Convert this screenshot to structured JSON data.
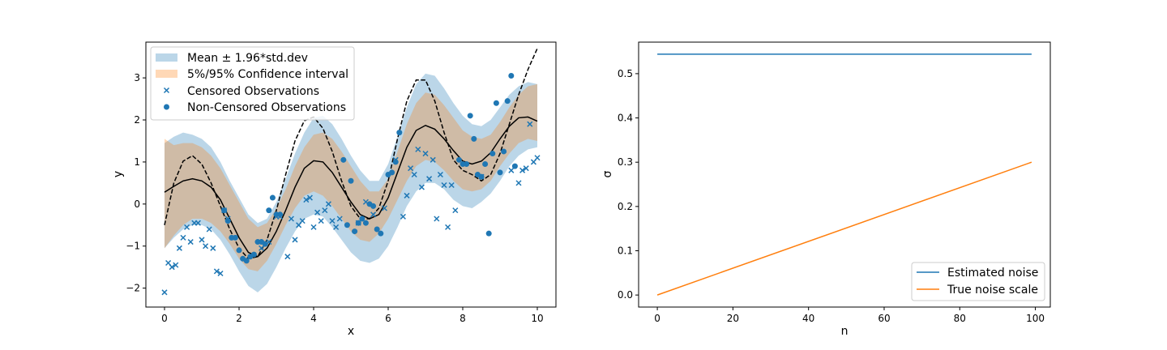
{
  "chart_data": [
    {
      "type": "line",
      "xlabel": "x",
      "ylabel": "y",
      "xlim": [
        -0.5,
        10.5
      ],
      "ylim": [
        -2.45,
        3.85
      ],
      "xticks": [
        0,
        2,
        4,
        6,
        8,
        10
      ],
      "yticks": [
        -2,
        -1,
        0,
        1,
        2,
        3
      ],
      "legend_location": "upper left",
      "colors": {
        "band_blue": "#1f77b4",
        "band_orange": "#ff7f0e",
        "scatter": "#1f77b4",
        "mean": "#000000"
      },
      "legend": [
        "Mean ± 1.96*std.dev",
        "5%/95% Confidence interval",
        "Censored Observations",
        "Non-Censored Observations"
      ],
      "band_mean_std": {
        "x": [
          0,
          0.25,
          0.5,
          0.75,
          1,
          1.25,
          1.5,
          1.75,
          2,
          2.25,
          2.5,
          2.75,
          3,
          3.25,
          3.5,
          3.75,
          4,
          4.25,
          4.5,
          4.75,
          5,
          5.25,
          5.5,
          5.75,
          6,
          6.25,
          6.5,
          6.75,
          7,
          7.25,
          7.5,
          7.75,
          8,
          8.25,
          8.5,
          8.75,
          9,
          9.25,
          9.5,
          9.75,
          10
        ],
        "lower": [
          -1.05,
          -0.8,
          -0.6,
          -0.5,
          -0.5,
          -0.6,
          -0.85,
          -1.2,
          -1.6,
          -1.95,
          -2.1,
          -1.9,
          -1.5,
          -1.05,
          -0.65,
          -0.35,
          -0.25,
          -0.3,
          -0.55,
          -0.85,
          -1.15,
          -1.35,
          -1.4,
          -1.3,
          -1.0,
          -0.55,
          -0.05,
          0.3,
          0.5,
          0.5,
          0.35,
          0.1,
          -0.05,
          -0.1,
          0.05,
          0.25,
          0.55,
          0.9,
          1.15,
          1.3,
          1.35
        ],
        "upper": [
          1.45,
          1.6,
          1.7,
          1.65,
          1.55,
          1.35,
          1.0,
          0.55,
          0.15,
          -0.25,
          -0.45,
          -0.35,
          0.05,
          0.6,
          1.2,
          1.7,
          2.05,
          2.1,
          1.9,
          1.55,
          1.15,
          0.8,
          0.55,
          0.55,
          0.95,
          1.6,
          2.3,
          2.85,
          3.1,
          3.05,
          2.75,
          2.4,
          2.1,
          1.9,
          1.85,
          2.0,
          2.3,
          2.6,
          2.8,
          2.9,
          2.85
        ]
      },
      "band_confidence": {
        "x": [
          0,
          0.25,
          0.5,
          0.75,
          1,
          1.25,
          1.5,
          1.75,
          2,
          2.25,
          2.5,
          2.75,
          3,
          3.25,
          3.5,
          3.75,
          4,
          4.25,
          4.5,
          4.75,
          5,
          5.25,
          5.5,
          5.75,
          6,
          6.25,
          6.5,
          6.75,
          7,
          7.25,
          7.5,
          7.75,
          8,
          8.25,
          8.5,
          8.75,
          9,
          9.25,
          9.5,
          9.75,
          10
        ],
        "lower": [
          -1.05,
          -0.75,
          -0.5,
          -0.35,
          -0.35,
          -0.45,
          -0.65,
          -0.95,
          -1.3,
          -1.55,
          -1.6,
          -1.35,
          -0.95,
          -0.5,
          -0.1,
          0.2,
          0.3,
          0.2,
          -0.05,
          -0.35,
          -0.65,
          -0.85,
          -0.9,
          -0.7,
          -0.35,
          0.1,
          0.55,
          0.9,
          1.05,
          1.0,
          0.8,
          0.55,
          0.35,
          0.3,
          0.35,
          0.55,
          0.9,
          1.2,
          1.45,
          1.55,
          1.5
        ],
        "upper": [
          1.55,
          1.4,
          1.45,
          1.45,
          1.35,
          1.15,
          0.85,
          0.45,
          0.05,
          -0.35,
          -0.55,
          -0.45,
          -0.1,
          0.35,
          0.9,
          1.35,
          1.65,
          1.7,
          1.55,
          1.25,
          0.9,
          0.55,
          0.3,
          0.3,
          0.6,
          1.25,
          1.9,
          2.4,
          2.65,
          2.6,
          2.35,
          2.05,
          1.75,
          1.6,
          1.55,
          1.65,
          1.95,
          2.3,
          2.6,
          2.8,
          2.85
        ]
      },
      "mean_line": {
        "x": [
          0,
          0.25,
          0.5,
          0.75,
          1,
          1.25,
          1.5,
          1.75,
          2,
          2.25,
          2.5,
          2.75,
          3,
          3.25,
          3.5,
          3.75,
          4,
          4.25,
          4.5,
          4.75,
          5,
          5.25,
          5.5,
          5.75,
          6,
          6.25,
          6.5,
          6.75,
          7,
          7.25,
          7.5,
          7.75,
          8,
          8.25,
          8.5,
          8.75,
          9,
          9.25,
          9.5,
          9.75,
          10
        ],
        "y": [
          0.28,
          0.42,
          0.55,
          0.6,
          0.55,
          0.4,
          0.1,
          -0.35,
          -0.8,
          -1.15,
          -1.25,
          -1.05,
          -0.65,
          -0.15,
          0.4,
          0.85,
          1.03,
          1.0,
          0.75,
          0.4,
          0.05,
          -0.25,
          -0.35,
          -0.25,
          0.15,
          0.75,
          1.35,
          1.75,
          1.87,
          1.78,
          1.55,
          1.27,
          1.02,
          0.95,
          1.02,
          1.22,
          1.55,
          1.85,
          2.05,
          2.07,
          1.97
        ]
      },
      "true_function": {
        "x": [
          0,
          0.25,
          0.5,
          0.75,
          1,
          1.25,
          1.5,
          1.75,
          2,
          2.25,
          2.5,
          2.75,
          3,
          3.25,
          3.5,
          3.75,
          4,
          4.25,
          4.5,
          4.75,
          5,
          5.25,
          5.5,
          5.75,
          6,
          6.25,
          6.5,
          6.75,
          7,
          7.25,
          7.5,
          7.75,
          8,
          8.25,
          8.5,
          8.75,
          9,
          9.25,
          9.5,
          9.75,
          10
        ],
        "y": [
          -0.5,
          0.5,
          1.02,
          1.15,
          0.95,
          0.5,
          -0.05,
          -0.6,
          -1.05,
          -1.3,
          -1.25,
          -0.85,
          -0.15,
          0.7,
          1.5,
          1.98,
          2.07,
          1.8,
          1.25,
          0.55,
          -0.05,
          -0.35,
          -0.35,
          -0.1,
          0.55,
          1.55,
          2.45,
          2.95,
          2.95,
          2.45,
          1.7,
          1.05,
          0.8,
          0.7,
          0.55,
          0.7,
          1.2,
          1.9,
          2.6,
          3.2,
          3.7
        ]
      },
      "censored_observations": [
        [
          0.0,
          -2.1
        ],
        [
          0.1,
          -1.4
        ],
        [
          0.2,
          -1.5
        ],
        [
          0.3,
          -1.45
        ],
        [
          0.4,
          -1.05
        ],
        [
          0.5,
          -0.8
        ],
        [
          0.6,
          -0.55
        ],
        [
          0.7,
          -0.9
        ],
        [
          0.8,
          -0.45
        ],
        [
          0.9,
          -0.45
        ],
        [
          1.0,
          -0.85
        ],
        [
          1.1,
          -1.0
        ],
        [
          1.2,
          -0.6
        ],
        [
          1.3,
          -1.05
        ],
        [
          1.4,
          -1.6
        ],
        [
          1.5,
          -1.65
        ],
        [
          1.6,
          -0.15
        ],
        [
          1.7,
          -0.35
        ],
        [
          2.6,
          -1.05
        ],
        [
          2.8,
          -0.9
        ],
        [
          3.0,
          -0.3
        ],
        [
          3.1,
          -0.3
        ],
        [
          3.3,
          -1.25
        ],
        [
          3.4,
          -0.35
        ],
        [
          3.5,
          -0.85
        ],
        [
          3.6,
          -0.5
        ],
        [
          3.7,
          -0.4
        ],
        [
          3.8,
          0.1
        ],
        [
          3.9,
          0.15
        ],
        [
          4.0,
          -0.55
        ],
        [
          4.1,
          -0.2
        ],
        [
          4.2,
          -0.4
        ],
        [
          4.3,
          -0.15
        ],
        [
          4.4,
          0.0
        ],
        [
          4.5,
          -0.4
        ],
        [
          4.6,
          -0.55
        ],
        [
          4.7,
          -0.35
        ],
        [
          5.2,
          -0.45
        ],
        [
          5.4,
          0.05
        ],
        [
          5.6,
          -0.25
        ],
        [
          5.9,
          -0.1
        ],
        [
          6.2,
          1.05
        ],
        [
          6.4,
          -0.3
        ],
        [
          6.5,
          0.2
        ],
        [
          6.6,
          0.85
        ],
        [
          6.7,
          0.7
        ],
        [
          6.8,
          1.3
        ],
        [
          6.9,
          0.4
        ],
        [
          7.0,
          1.2
        ],
        [
          7.1,
          0.6
        ],
        [
          7.2,
          1.05
        ],
        [
          7.3,
          -0.35
        ],
        [
          7.4,
          0.7
        ],
        [
          7.5,
          0.45
        ],
        [
          7.6,
          -0.55
        ],
        [
          7.7,
          0.45
        ],
        [
          7.8,
          -0.15
        ],
        [
          8.5,
          0.65
        ],
        [
          9.3,
          0.8
        ],
        [
          9.5,
          0.5
        ],
        [
          9.6,
          0.8
        ],
        [
          9.7,
          0.85
        ],
        [
          9.8,
          1.9
        ],
        [
          9.9,
          1.0
        ],
        [
          10.0,
          1.1
        ]
      ],
      "non_censored_observations": [
        [
          1.6,
          -0.15
        ],
        [
          1.7,
          -0.4
        ],
        [
          1.8,
          -0.8
        ],
        [
          1.9,
          -0.8
        ],
        [
          2.0,
          -1.1
        ],
        [
          2.1,
          -1.3
        ],
        [
          2.2,
          -1.35
        ],
        [
          2.3,
          -1.25
        ],
        [
          2.4,
          -1.2
        ],
        [
          2.5,
          -0.9
        ],
        [
          2.6,
          -0.9
        ],
        [
          2.7,
          -0.95
        ],
        [
          2.8,
          -0.15
        ],
        [
          2.9,
          0.15
        ],
        [
          3.0,
          -0.25
        ],
        [
          3.1,
          -0.25
        ],
        [
          4.8,
          1.05
        ],
        [
          4.9,
          -0.5
        ],
        [
          5.0,
          0.55
        ],
        [
          5.1,
          -0.65
        ],
        [
          5.2,
          -0.45
        ],
        [
          5.3,
          -0.35
        ],
        [
          5.4,
          -0.45
        ],
        [
          5.5,
          0.0
        ],
        [
          5.6,
          -0.05
        ],
        [
          5.7,
          -0.6
        ],
        [
          5.8,
          -0.7
        ],
        [
          6.0,
          0.7
        ],
        [
          6.1,
          0.75
        ],
        [
          6.2,
          1.0
        ],
        [
          6.3,
          1.7
        ],
        [
          7.9,
          1.05
        ],
        [
          8.0,
          0.95
        ],
        [
          8.1,
          0.95
        ],
        [
          8.2,
          2.1
        ],
        [
          8.3,
          1.55
        ],
        [
          8.4,
          0.7
        ],
        [
          8.5,
          0.65
        ],
        [
          8.6,
          0.95
        ],
        [
          8.7,
          -0.7
        ],
        [
          8.8,
          1.2
        ],
        [
          8.9,
          2.4
        ],
        [
          9.0,
          0.75
        ],
        [
          9.1,
          1.25
        ],
        [
          9.2,
          2.45
        ],
        [
          9.3,
          3.05
        ],
        [
          9.4,
          0.9
        ]
      ]
    },
    {
      "type": "line",
      "xlabel": "n",
      "ylabel": "σ",
      "xlim": [
        -4.95,
        103.95
      ],
      "ylim": [
        -0.0272,
        0.5712
      ],
      "xticks": [
        0,
        20,
        40,
        60,
        80,
        100
      ],
      "yticks": [
        0.0,
        0.1,
        0.2,
        0.3,
        0.4,
        0.5
      ],
      "legend_location": "lower right",
      "series": [
        {
          "name": "Estimated noise",
          "color": "#1f77b4",
          "x": [
            0,
            99
          ],
          "y": [
            0.544,
            0.544
          ]
        },
        {
          "name": "True noise scale",
          "color": "#ff7f0e",
          "x": [
            0,
            99
          ],
          "y": [
            0.0,
            0.3
          ]
        }
      ]
    }
  ]
}
